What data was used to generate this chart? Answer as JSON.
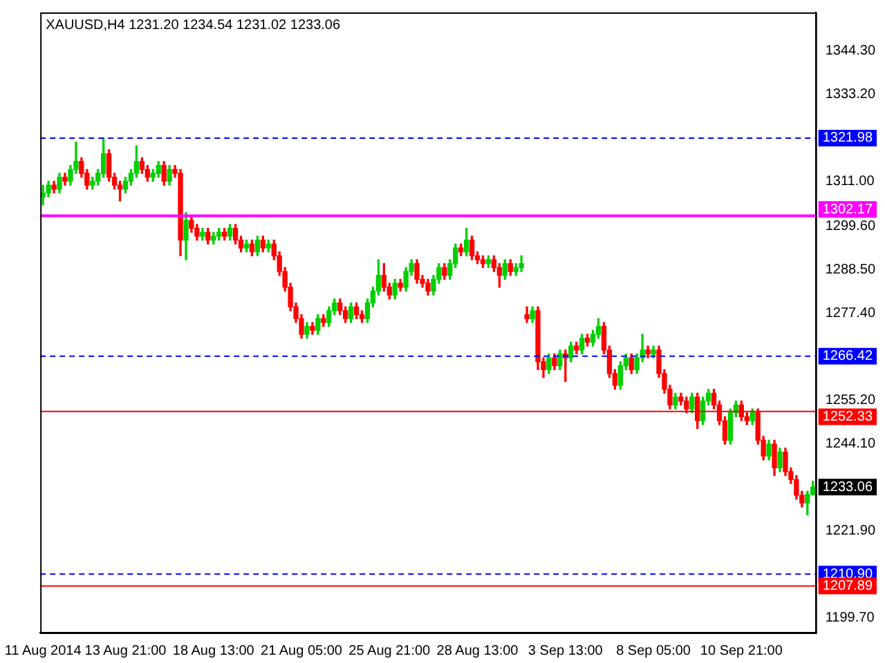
{
  "chart_data": {
    "type": "candlestick",
    "title": "XAUUSD,H4 1231.20 1234.54 1231.02 1233.06",
    "categories": [
      "11 Aug 2014",
      null,
      null,
      null,
      null,
      null,
      null,
      null,
      null,
      null,
      null,
      null,
      null,
      null,
      null,
      "13 Aug 21:00",
      null,
      null,
      null,
      null,
      null,
      null,
      null,
      null,
      null,
      null,
      null,
      null,
      null,
      null,
      null,
      "18 Aug 13:00",
      null,
      null,
      null,
      null,
      null,
      null,
      null,
      null,
      null,
      null,
      null,
      null,
      null,
      null,
      null,
      "21 Aug 05:00",
      null,
      null,
      null,
      null,
      null,
      null,
      null,
      null,
      null,
      null,
      null,
      null,
      null,
      null,
      null,
      "25 Aug 21:00",
      null,
      null,
      null,
      null,
      null,
      null,
      null,
      null,
      null,
      null,
      null,
      null,
      null,
      null,
      null,
      "28 Aug 13:00",
      null,
      null,
      null,
      null,
      null,
      null,
      null,
      null,
      null,
      null,
      null,
      null,
      null,
      null,
      null,
      "3 Sep 13:00",
      null,
      null,
      null,
      null,
      null,
      null,
      null,
      null,
      null,
      null,
      null,
      null,
      null,
      null,
      null,
      "8 Sep 05:00",
      null,
      null,
      null,
      null,
      null,
      null,
      null,
      null,
      null,
      null,
      null,
      null,
      null,
      null,
      null,
      "10 Sep 21:00",
      null,
      null,
      null,
      null,
      null,
      null,
      null,
      null,
      null,
      null,
      null,
      null,
      null
    ],
    "ohlc": [
      [
        1307,
        1310,
        1305,
        1308
      ],
      [
        1308,
        1311,
        1307,
        1310
      ],
      [
        1310,
        1311,
        1308,
        1309
      ],
      [
        1309,
        1313,
        1308,
        1312
      ],
      [
        1312,
        1313,
        1310,
        1311
      ],
      [
        1311,
        1315,
        1310,
        1314
      ],
      [
        1314,
        1321,
        1313,
        1316
      ],
      [
        1316,
        1317,
        1312,
        1313
      ],
      [
        1313,
        1314,
        1309,
        1310
      ],
      [
        1310,
        1312,
        1309,
        1311
      ],
      [
        1311,
        1314,
        1310,
        1313
      ],
      [
        1313,
        1322,
        1312,
        1318
      ],
      [
        1318,
        1319,
        1311,
        1312
      ],
      [
        1312,
        1313,
        1309,
        1310
      ],
      [
        1310,
        1311,
        1306,
        1309
      ],
      [
        1309,
        1312,
        1308,
        1311
      ],
      [
        1311,
        1314,
        1310,
        1313
      ],
      [
        1313,
        1320,
        1312,
        1316
      ],
      [
        1316,
        1317,
        1313,
        1314
      ],
      [
        1314,
        1315,
        1311,
        1312
      ],
      [
        1312,
        1314,
        1311,
        1313
      ],
      [
        1313,
        1316,
        1312,
        1315
      ],
      [
        1315,
        1316,
        1310,
        1311
      ],
      [
        1311,
        1315,
        1310,
        1314
      ],
      [
        1314,
        1315,
        1312,
        1313
      ],
      [
        1313,
        1314,
        1292,
        1296
      ],
      [
        1296,
        1303,
        1291,
        1301
      ],
      [
        1301,
        1302,
        1298,
        1299
      ],
      [
        1299,
        1300,
        1296,
        1297
      ],
      [
        1297,
        1299,
        1296,
        1298
      ],
      [
        1298,
        1299,
        1295,
        1296
      ],
      [
        1296,
        1298,
        1295,
        1297
      ],
      [
        1297,
        1299,
        1296,
        1298
      ],
      [
        1298,
        1299,
        1296,
        1297
      ],
      [
        1297,
        1300,
        1296,
        1299
      ],
      [
        1299,
        1300,
        1295,
        1296
      ],
      [
        1296,
        1297,
        1293,
        1294
      ],
      [
        1294,
        1296,
        1293,
        1295
      ],
      [
        1295,
        1296,
        1292,
        1293
      ],
      [
        1293,
        1297,
        1292,
        1296
      ],
      [
        1296,
        1297,
        1293,
        1294
      ],
      [
        1294,
        1296,
        1293,
        1295
      ],
      [
        1295,
        1296,
        1291,
        1292
      ],
      [
        1292,
        1293,
        1287,
        1288
      ],
      [
        1288,
        1289,
        1283,
        1284
      ],
      [
        1284,
        1285,
        1278,
        1279
      ],
      [
        1279,
        1280,
        1275,
        1276
      ],
      [
        1276,
        1277,
        1271,
        1272
      ],
      [
        1272,
        1275,
        1271,
        1274
      ],
      [
        1274,
        1275,
        1272,
        1273
      ],
      [
        1273,
        1277,
        1272,
        1276
      ],
      [
        1276,
        1277,
        1274,
        1275
      ],
      [
        1275,
        1279,
        1274,
        1278
      ],
      [
        1278,
        1281,
        1277,
        1280
      ],
      [
        1280,
        1281,
        1277,
        1278
      ],
      [
        1278,
        1279,
        1275,
        1276
      ],
      [
        1276,
        1280,
        1275,
        1279
      ],
      [
        1279,
        1280,
        1276,
        1277
      ],
      [
        1277,
        1278,
        1275,
        1276
      ],
      [
        1276,
        1281,
        1275,
        1280
      ],
      [
        1280,
        1284,
        1279,
        1283
      ],
      [
        1283,
        1291,
        1282,
        1287
      ],
      [
        1287,
        1290,
        1283,
        1284
      ],
      [
        1284,
        1285,
        1281,
        1282
      ],
      [
        1282,
        1286,
        1281,
        1285
      ],
      [
        1285,
        1286,
        1283,
        1284
      ],
      [
        1284,
        1289,
        1283,
        1288
      ],
      [
        1288,
        1291,
        1287,
        1290
      ],
      [
        1290,
        1291,
        1285,
        1286
      ],
      [
        1286,
        1287,
        1284,
        1285
      ],
      [
        1285,
        1286,
        1282,
        1283
      ],
      [
        1283,
        1287,
        1282,
        1286
      ],
      [
        1286,
        1290,
        1285,
        1289
      ],
      [
        1289,
        1290,
        1286,
        1287
      ],
      [
        1287,
        1291,
        1286,
        1290
      ],
      [
        1290,
        1295,
        1289,
        1294
      ],
      [
        1294,
        1295,
        1292,
        1293
      ],
      [
        1293,
        1299,
        1292,
        1296
      ],
      [
        1296,
        1297,
        1291,
        1292
      ],
      [
        1292,
        1293,
        1290,
        1291
      ],
      [
        1291,
        1292,
        1289,
        1290
      ],
      [
        1290,
        1292,
        1289,
        1291
      ],
      [
        1291,
        1292,
        1288,
        1289
      ],
      [
        1289,
        1290,
        1284,
        1287
      ],
      [
        1287,
        1291,
        1286,
        1290
      ],
      [
        1290,
        1291,
        1287,
        1288
      ],
      [
        1288,
        1290,
        1287,
        1289
      ],
      [
        1289,
        1292,
        1288,
        1290
      ],
      [
        1277,
        1279,
        1275,
        1276
      ],
      [
        1276,
        1279,
        1275,
        1278
      ],
      [
        1278,
        1279,
        1263,
        1265
      ],
      [
        1265,
        1266,
        1261,
        1263
      ],
      [
        1263,
        1267,
        1262,
        1266
      ],
      [
        1266,
        1267,
        1263,
        1264
      ],
      [
        1264,
        1268,
        1263,
        1267
      ],
      [
        1267,
        1268,
        1260,
        1266
      ],
      [
        1266,
        1270,
        1265,
        1269
      ],
      [
        1269,
        1270,
        1267,
        1268
      ],
      [
        1268,
        1272,
        1267,
        1271
      ],
      [
        1271,
        1272,
        1269,
        1270
      ],
      [
        1270,
        1273,
        1269,
        1272
      ],
      [
        1272,
        1276,
        1271,
        1274
      ],
      [
        1274,
        1275,
        1267,
        1268
      ],
      [
        1268,
        1269,
        1261,
        1262
      ],
      [
        1262,
        1263,
        1258,
        1259
      ],
      [
        1259,
        1265,
        1258,
        1264
      ],
      [
        1264,
        1267,
        1263,
        1266
      ],
      [
        1266,
        1267,
        1262,
        1263
      ],
      [
        1263,
        1267,
        1262,
        1266
      ],
      [
        1266,
        1272,
        1265,
        1268
      ],
      [
        1268,
        1269,
        1266,
        1267
      ],
      [
        1267,
        1269,
        1266,
        1268
      ],
      [
        1268,
        1269,
        1261,
        1262
      ],
      [
        1262,
        1263,
        1257,
        1258
      ],
      [
        1258,
        1259,
        1253,
        1254
      ],
      [
        1254,
        1257,
        1253,
        1256
      ],
      [
        1256,
        1257,
        1254,
        1255
      ],
      [
        1255,
        1256,
        1252,
        1253
      ],
      [
        1253,
        1257,
        1252,
        1256
      ],
      [
        1256,
        1257,
        1248,
        1250
      ],
      [
        1250,
        1256,
        1249,
        1255
      ],
      [
        1255,
        1258,
        1254,
        1257
      ],
      [
        1257,
        1258,
        1253,
        1254
      ],
      [
        1254,
        1255,
        1249,
        1250
      ],
      [
        1250,
        1251,
        1244,
        1245
      ],
      [
        1245,
        1253,
        1244,
        1252
      ],
      [
        1252,
        1255,
        1251,
        1254
      ],
      [
        1254,
        1255,
        1250,
        1251
      ],
      [
        1251,
        1252,
        1249,
        1250
      ],
      [
        1250,
        1253,
        1249,
        1252
      ],
      [
        1252,
        1253,
        1244,
        1245
      ],
      [
        1245,
        1246,
        1240,
        1241
      ],
      [
        1241,
        1245,
        1240,
        1244
      ],
      [
        1244,
        1245,
        1236,
        1238
      ],
      [
        1238,
        1243,
        1237,
        1242
      ],
      [
        1242,
        1243,
        1236,
        1237
      ],
      [
        1237,
        1238,
        1234,
        1235
      ],
      [
        1235,
        1236,
        1230,
        1231
      ],
      [
        1231,
        1232,
        1228,
        1229
      ],
      [
        1229,
        1232,
        1226,
        1231.2
      ],
      [
        1231.2,
        1234.54,
        1231.02,
        1233.06
      ]
    ],
    "colors": [
      "#00d000",
      "#00d000",
      "#ff0000",
      "#00d000",
      "#ff0000",
      "#00d000",
      "#00d000",
      "#ff0000",
      "#ff0000",
      "#00d000",
      "#00d000",
      "#00d000",
      "#ff0000",
      "#ff0000",
      "#ff0000",
      "#00d000",
      "#00d000",
      "#00d000",
      "#ff0000",
      "#ff0000",
      "#00d000",
      "#00d000",
      "#ff0000",
      "#00d000",
      "#ff0000",
      "#ff0000",
      "#00d000",
      "#ff0000",
      "#ff0000",
      "#00d000",
      "#ff0000",
      "#00d000",
      "#00d000",
      "#ff0000",
      "#00d000",
      "#ff0000",
      "#ff0000",
      "#00d000",
      "#ff0000",
      "#00d000",
      "#ff0000",
      "#00d000",
      "#ff0000",
      "#ff0000",
      "#ff0000",
      "#ff0000",
      "#ff0000",
      "#ff0000",
      "#00d000",
      "#ff0000",
      "#00d000",
      "#ff0000",
      "#00d000",
      "#00d000",
      "#ff0000",
      "#ff0000",
      "#00d000",
      "#ff0000",
      "#ff0000",
      "#00d000",
      "#00d000",
      "#00d000",
      "#ff0000",
      "#ff0000",
      "#00d000",
      "#ff0000",
      "#00d000",
      "#00d000",
      "#ff0000",
      "#ff0000",
      "#ff0000",
      "#00d000",
      "#00d000",
      "#ff0000",
      "#00d000",
      "#00d000",
      "#ff0000",
      "#00d000",
      "#ff0000",
      "#ff0000",
      "#ff0000",
      "#00d000",
      "#ff0000",
      "#ff0000",
      "#00d000",
      "#ff0000",
      "#00d000",
      "#00d000",
      "#ff0000",
      "#00d000",
      "#ff0000",
      "#ff0000",
      "#00d000",
      "#ff0000",
      "#00d000",
      "#ff0000",
      "#00d000",
      "#ff0000",
      "#00d000",
      "#ff0000",
      "#00d000",
      "#00d000",
      "#ff0000",
      "#ff0000",
      "#ff0000",
      "#00d000",
      "#00d000",
      "#ff0000",
      "#00d000",
      "#00d000",
      "#ff0000",
      "#00d000",
      "#ff0000",
      "#ff0000",
      "#ff0000",
      "#00d000",
      "#ff0000",
      "#ff0000",
      "#00d000",
      "#ff0000",
      "#00d000",
      "#00d000",
      "#ff0000",
      "#ff0000",
      "#ff0000",
      "#00d000",
      "#00d000",
      "#ff0000",
      "#ff0000",
      "#00d000",
      "#ff0000",
      "#ff0000",
      "#00d000",
      "#ff0000",
      "#00d000",
      "#ff0000",
      "#ff0000",
      "#ff0000",
      "#ff0000",
      "#00d000",
      "#00d000"
    ],
    "annotations": [
      "1233.06"
    ],
    "ylim": [
      1196,
      1354
    ],
    "yticks": [
      {
        "value": 1199.7,
        "label": "1199.70"
      },
      {
        "value": 1221.9,
        "label": "1221.90"
      },
      {
        "value": 1244.1,
        "label": "1244.10"
      },
      {
        "value": 1255.2,
        "label": "1255.20"
      },
      {
        "value": 1277.4,
        "label": "1277.40"
      },
      {
        "value": 1288.5,
        "label": "1288.50"
      },
      {
        "value": 1299.6,
        "label": "1299.60"
      },
      {
        "value": 1311,
        "label": "1311.00"
      },
      {
        "value": 1333.2,
        "label": "1333.20"
      },
      {
        "value": 1344.3,
        "label": "1344.30"
      }
    ],
    "ref_lines": [
      {
        "axis": "y",
        "value": 1321.98,
        "label": "1321.98",
        "color": "#0000ff",
        "line_style": "dashed"
      },
      {
        "axis": "y",
        "value": 1302.17,
        "label": "1302.17",
        "color": "#ff00ff",
        "line_style": "solid"
      },
      {
        "axis": "y",
        "value": 1266.42,
        "label": "1266.42",
        "color": "#0000ff",
        "line_style": "dashed"
      },
      {
        "axis": "y",
        "value": 1252.33,
        "label": "1252.33",
        "color": "#ff0000",
        "line_style": "solid"
      },
      {
        "axis": "y",
        "value": 1210.9,
        "label": "1210.90",
        "color": "#0000ff",
        "line_style": "dashed"
      },
      {
        "axis": "y",
        "value": 1207.89,
        "label": "1207.89",
        "color": "#ff0000",
        "line_style": "solid"
      }
    ],
    "grid": false,
    "legend": false
  }
}
